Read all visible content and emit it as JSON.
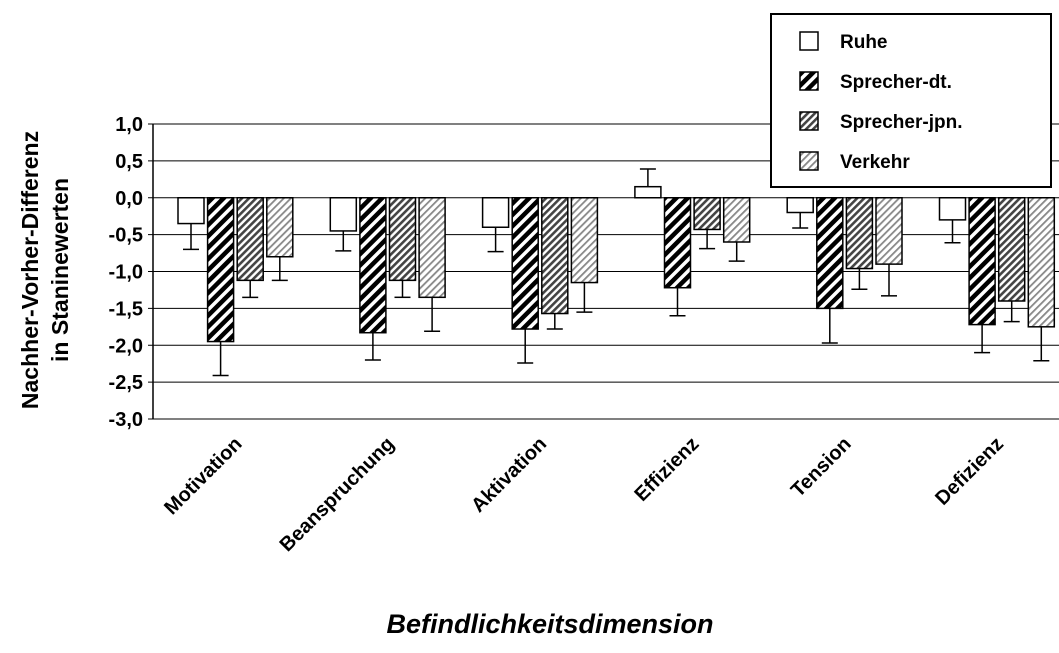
{
  "chart_data": {
    "type": "bar",
    "title": "",
    "xlabel": "Befindlichkeitsdimension",
    "ylabel": [
      "Nachher-Vorher-Differenz",
      "in Staninewerten"
    ],
    "ylim": [
      -3.0,
      1.0
    ],
    "yticks": [
      1.0,
      0.5,
      0.0,
      -0.5,
      -1.0,
      -1.5,
      -2.0,
      -2.5,
      -3.0
    ],
    "ytick_labels": [
      "1,0",
      "0,5",
      "0,0",
      "-0,5",
      "-1,0",
      "-1,5",
      "-2,0",
      "-2,5",
      "-3,0"
    ],
    "grid": true,
    "legend_position": "top-right",
    "categories": [
      "Motivation",
      "Beanspruchung",
      "Aktivation",
      "Effizienz",
      "Tension",
      "Defizienz"
    ],
    "series": [
      {
        "name": "Ruhe",
        "pattern": "open",
        "values": [
          -0.35,
          -0.45,
          -0.4,
          0.15,
          -0.2,
          -0.3
        ],
        "errors": [
          0.35,
          0.27,
          0.33,
          0.24,
          0.21,
          0.31
        ]
      },
      {
        "name": "Sprecher-dt.",
        "pattern": "dense-hatch",
        "values": [
          -1.95,
          -1.83,
          -1.78,
          -1.22,
          -1.5,
          -1.72
        ],
        "errors": [
          0.46,
          0.37,
          0.46,
          0.38,
          0.47,
          0.38
        ]
      },
      {
        "name": "Sprecher-jpn.",
        "pattern": "medium-hatch",
        "values": [
          -1.12,
          -1.12,
          -1.57,
          -0.43,
          -0.96,
          -1.4
        ],
        "errors": [
          0.23,
          0.23,
          0.21,
          0.26,
          0.28,
          0.28
        ]
      },
      {
        "name": "Verkehr",
        "pattern": "light-hatch",
        "values": [
          -0.8,
          -1.35,
          -1.15,
          -0.6,
          -0.9,
          -1.75
        ],
        "errors": [
          0.32,
          0.46,
          0.4,
          0.26,
          0.43,
          0.46
        ]
      }
    ]
  }
}
